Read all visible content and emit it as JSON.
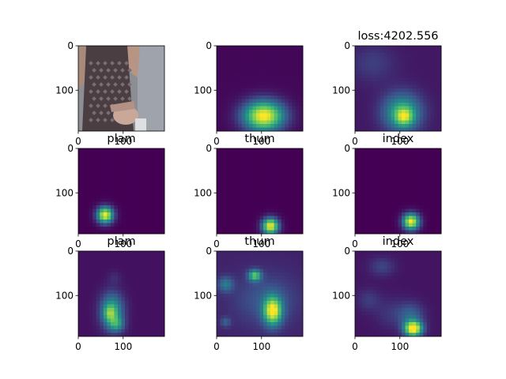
{
  "figure": {
    "background": "#ffffff",
    "colormap": [
      "#440154",
      "#3b528b",
      "#21918c",
      "#5ec962",
      "#fde725"
    ]
  },
  "chart_data": [
    {
      "type": "heatmap",
      "row": 0,
      "col": 0,
      "title": "",
      "kind": "photo",
      "description_shown": "person in patterned tank top",
      "xticks": [],
      "yticks": [
        "0",
        "100"
      ],
      "xlim": [
        0,
        192
      ],
      "ylim": [
        192,
        0
      ]
    },
    {
      "type": "heatmap",
      "row": 0,
      "col": 1,
      "title": "",
      "blobs": [
        {
          "cx": 105,
          "cy": 158,
          "sx": 32,
          "sy": 24,
          "amp": 1.0
        }
      ],
      "floor": 0.02,
      "xticks": [],
      "yticks": [
        "0",
        "100"
      ],
      "xlim": [
        0,
        192
      ],
      "ylim": [
        192,
        0
      ]
    },
    {
      "type": "heatmap",
      "row": 0,
      "col": 2,
      "title": "loss:4202.556",
      "blobs": [
        {
          "cx": 105,
          "cy": 150,
          "sx": 30,
          "sy": 30,
          "amp": 0.55
        },
        {
          "cx": 110,
          "cy": 160,
          "sx": 14,
          "sy": 14,
          "amp": 0.45
        },
        {
          "cx": 40,
          "cy": 40,
          "sx": 35,
          "sy": 30,
          "amp": 0.12
        }
      ],
      "floor": 0.07,
      "xticks": [],
      "yticks": [
        "0",
        "100"
      ],
      "xlim": [
        0,
        192
      ],
      "ylim": [
        192,
        0
      ]
    },
    {
      "type": "heatmap",
      "row": 1,
      "col": 0,
      "title": "plam",
      "blobs": [
        {
          "cx": 60,
          "cy": 150,
          "sx": 13,
          "sy": 13,
          "amp": 1.0
        }
      ],
      "floor": 0.0,
      "xticks": [
        "0",
        "100"
      ],
      "yticks": [
        "0",
        "100"
      ],
      "xlim": [
        0,
        192
      ],
      "ylim": [
        192,
        0
      ]
    },
    {
      "type": "heatmap",
      "row": 1,
      "col": 1,
      "title": "thum",
      "blobs": [
        {
          "cx": 120,
          "cy": 175,
          "sx": 13,
          "sy": 13,
          "amp": 1.0
        }
      ],
      "floor": 0.0,
      "xticks": [
        "0",
        "100"
      ],
      "yticks": [
        "0",
        "100"
      ],
      "xlim": [
        0,
        192
      ],
      "ylim": [
        192,
        0
      ]
    },
    {
      "type": "heatmap",
      "row": 1,
      "col": 2,
      "title": "index",
      "blobs": [
        {
          "cx": 125,
          "cy": 165,
          "sx": 13,
          "sy": 13,
          "amp": 1.0
        }
      ],
      "floor": 0.0,
      "xticks": [
        "0",
        "100"
      ],
      "yticks": [
        "0",
        "100"
      ],
      "xlim": [
        0,
        192
      ],
      "ylim": [
        192,
        0
      ]
    },
    {
      "type": "heatmap",
      "row": 2,
      "col": 0,
      "title": "plam",
      "blobs": [
        {
          "cx": 75,
          "cy": 135,
          "sx": 18,
          "sy": 28,
          "amp": 0.55
        },
        {
          "cx": 70,
          "cy": 140,
          "sx": 9,
          "sy": 12,
          "amp": 0.3
        },
        {
          "cx": 85,
          "cy": 165,
          "sx": 12,
          "sy": 12,
          "amp": 0.35
        },
        {
          "cx": 80,
          "cy": 60,
          "sx": 10,
          "sy": 10,
          "amp": 0.08
        }
      ],
      "floor": 0.05,
      "xticks": [
        "0",
        "100"
      ],
      "yticks": [
        "0",
        "100"
      ],
      "xlim": [
        0,
        192
      ],
      "ylim": [
        192,
        0
      ]
    },
    {
      "type": "heatmap",
      "row": 2,
      "col": 1,
      "title": "thum",
      "blobs": [
        {
          "cx": 125,
          "cy": 135,
          "sx": 14,
          "sy": 22,
          "amp": 0.85
        },
        {
          "cx": 85,
          "cy": 55,
          "sx": 10,
          "sy": 9,
          "amp": 0.6
        },
        {
          "cx": 20,
          "cy": 75,
          "sx": 12,
          "sy": 12,
          "amp": 0.3
        },
        {
          "cx": 20,
          "cy": 160,
          "sx": 8,
          "sy": 8,
          "amp": 0.2
        },
        {
          "cx": 110,
          "cy": 110,
          "sx": 50,
          "sy": 40,
          "amp": 0.18
        }
      ],
      "floor": 0.1,
      "xticks": [
        "0",
        "100"
      ],
      "yticks": [
        "0",
        "100"
      ],
      "xlim": [
        0,
        192
      ],
      "ylim": [
        192,
        0
      ]
    },
    {
      "type": "heatmap",
      "row": 2,
      "col": 2,
      "title": "index",
      "blobs": [
        {
          "cx": 130,
          "cy": 175,
          "sx": 14,
          "sy": 12,
          "amp": 1.0
        },
        {
          "cx": 125,
          "cy": 145,
          "sx": 20,
          "sy": 20,
          "amp": 0.25
        },
        {
          "cx": 60,
          "cy": 35,
          "sx": 20,
          "sy": 15,
          "amp": 0.15
        },
        {
          "cx": 30,
          "cy": 110,
          "sx": 18,
          "sy": 18,
          "amp": 0.12
        },
        {
          "cx": 80,
          "cy": 140,
          "sx": 25,
          "sy": 25,
          "amp": 0.1
        }
      ],
      "floor": 0.06,
      "xticks": [
        "0",
        "100"
      ],
      "yticks": [
        "0",
        "100"
      ],
      "xlim": [
        0,
        192
      ],
      "ylim": [
        192,
        0
      ]
    }
  ]
}
